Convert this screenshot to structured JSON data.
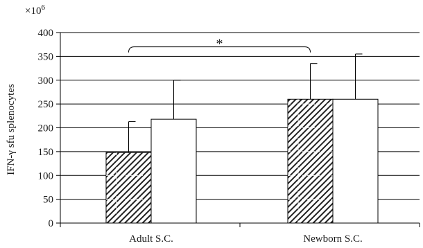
{
  "chart_data": {
    "type": "bar",
    "title": "",
    "ylabel": "IFN-γ sfu splenocytes",
    "y_multiplier": "×10",
    "y_multiplier_exp": "6",
    "ylim": [
      0,
      400
    ],
    "yticks": [
      0,
      50,
      100,
      150,
      200,
      250,
      300,
      350,
      400
    ],
    "grid": true,
    "categories": [
      "Adult S.C.",
      "Newborn S.C."
    ],
    "series": [
      {
        "pattern": "hatched",
        "values": [
          148,
          260
        ],
        "errors": [
          65,
          75
        ]
      },
      {
        "pattern": "white",
        "values": [
          218,
          260
        ],
        "errors": [
          82,
          95
        ]
      }
    ],
    "annotation": {
      "text": "*",
      "from": {
        "category": 0,
        "series": 0
      },
      "to": {
        "category": 1,
        "series": 0
      },
      "y": 370
    },
    "colors": {
      "hatch": "#222222",
      "bar_fill": "#ffffff",
      "axis": "#000000",
      "grid": "#000000"
    }
  }
}
